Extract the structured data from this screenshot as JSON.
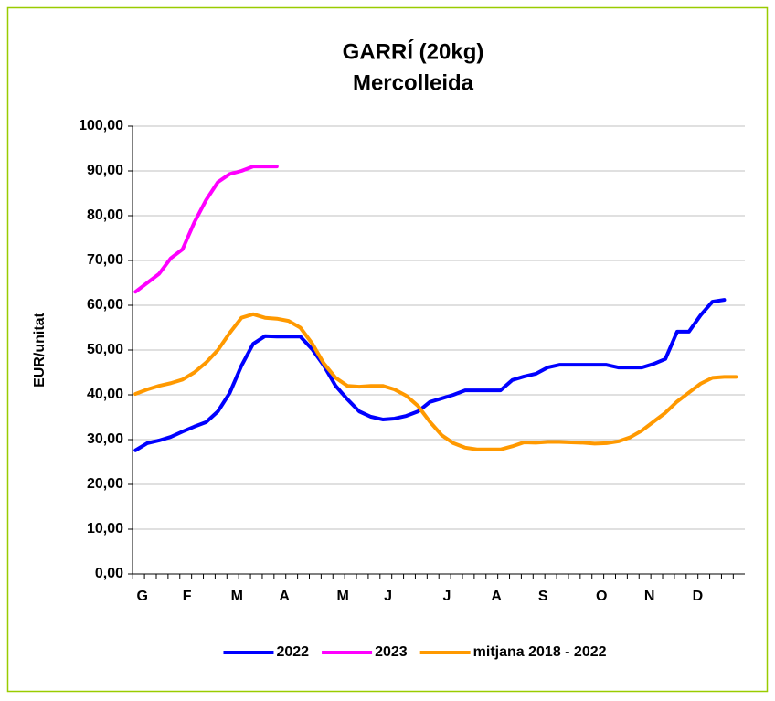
{
  "chart_data": {
    "type": "line",
    "title": "GARRÍ (20kg)",
    "subtitle": "Mercolleida",
    "y_label": "EUR/unitat",
    "x": [
      0,
      1,
      2,
      3,
      4,
      5,
      6,
      7,
      8,
      9,
      10,
      11,
      12,
      13,
      14,
      15,
      16,
      17,
      18,
      19,
      20,
      21,
      22,
      23,
      24,
      25,
      26,
      27,
      28,
      29,
      30,
      31,
      32,
      33,
      34,
      35,
      36,
      37,
      38,
      39,
      40,
      41,
      42,
      43,
      44,
      45,
      46,
      47,
      48,
      49,
      50,
      51
    ],
    "xlim": [
      -0.25,
      51.75
    ],
    "xticks": [
      {
        "value": 0.1,
        "label": "G"
      },
      {
        "value": 4,
        "label": "F"
      },
      {
        "value": 8.1,
        "label": "M"
      },
      {
        "value": 12.2,
        "label": "A"
      },
      {
        "value": 17.1,
        "label": "M"
      },
      {
        "value": 21.1,
        "label": "J"
      },
      {
        "value": 26.1,
        "label": "J"
      },
      {
        "value": 30.2,
        "label": "A"
      },
      {
        "value": 34.2,
        "label": "S"
      },
      {
        "value": 39.1,
        "label": "O"
      },
      {
        "value": 43.2,
        "label": "N"
      },
      {
        "value": 47.3,
        "label": "D"
      }
    ],
    "ylim": [
      0,
      100
    ],
    "yticks": [
      {
        "value": 0,
        "label": "0,00"
      },
      {
        "value": 10,
        "label": "10,00"
      },
      {
        "value": 20,
        "label": "20,00"
      },
      {
        "value": 30,
        "label": "30,00"
      },
      {
        "value": 40,
        "label": "40,00"
      },
      {
        "value": 50,
        "label": "50,00"
      },
      {
        "value": 60,
        "label": "60,00"
      },
      {
        "value": 70,
        "label": "70,00"
      },
      {
        "value": 80,
        "label": "80,00"
      },
      {
        "value": 90,
        "label": "90,00"
      },
      {
        "value": 100,
        "label": "100,00"
      }
    ],
    "grid": true,
    "legend": "bottom",
    "series": [
      {
        "name": "2022",
        "color": "#0000ff",
        "values": [
          27.6,
          29.2,
          29.8,
          30.6,
          31.8,
          32.9,
          33.9,
          36.3,
          40.4,
          46.5,
          51.4,
          53.1,
          53,
          53,
          53,
          50.2,
          46.5,
          42,
          39,
          36.3,
          35.1,
          34.5,
          34.7,
          35.3,
          36.3,
          38.4,
          39.2,
          40,
          41,
          41,
          41,
          41,
          43.3,
          44.1,
          44.7,
          46.1,
          46.7,
          46.7,
          46.7,
          46.7,
          46.7,
          46.1,
          46.1,
          46.1,
          46.9,
          48,
          54.1,
          54.1,
          57.8,
          60.8,
          61.2,
          null
        ]
      },
      {
        "name": "2023",
        "color": "#ff00ff",
        "values": [
          63,
          65,
          67,
          70.5,
          72.5,
          78.5,
          83.5,
          87.5,
          89.3,
          90,
          91,
          91,
          91,
          null,
          null,
          null,
          null,
          null,
          null,
          null,
          null,
          null,
          null,
          null,
          null,
          null,
          null,
          null,
          null,
          null,
          null,
          null,
          null,
          null,
          null,
          null,
          null,
          null,
          null,
          null,
          null,
          null,
          null,
          null,
          null,
          null,
          null,
          null,
          null,
          null,
          null,
          null
        ]
      },
      {
        "name": "mitjana 2018 - 2022",
        "color": "#ff9900",
        "values": [
          40.2,
          41.2,
          42,
          42.6,
          43.4,
          45,
          47.2,
          50,
          53.8,
          57.2,
          58,
          57.2,
          57,
          56.5,
          55,
          51.5,
          47,
          43.8,
          42,
          41.8,
          42,
          42,
          41.2,
          39.8,
          37.5,
          34,
          31,
          29.2,
          28.2,
          27.8,
          27.8,
          27.8,
          28.5,
          29.4,
          29.3,
          29.5,
          29.5,
          29.4,
          29.3,
          29.1,
          29.2,
          29.6,
          30.5,
          32,
          34,
          36,
          38.5,
          40.5,
          42.5,
          43.8,
          44,
          44
        ]
      }
    ]
  }
}
